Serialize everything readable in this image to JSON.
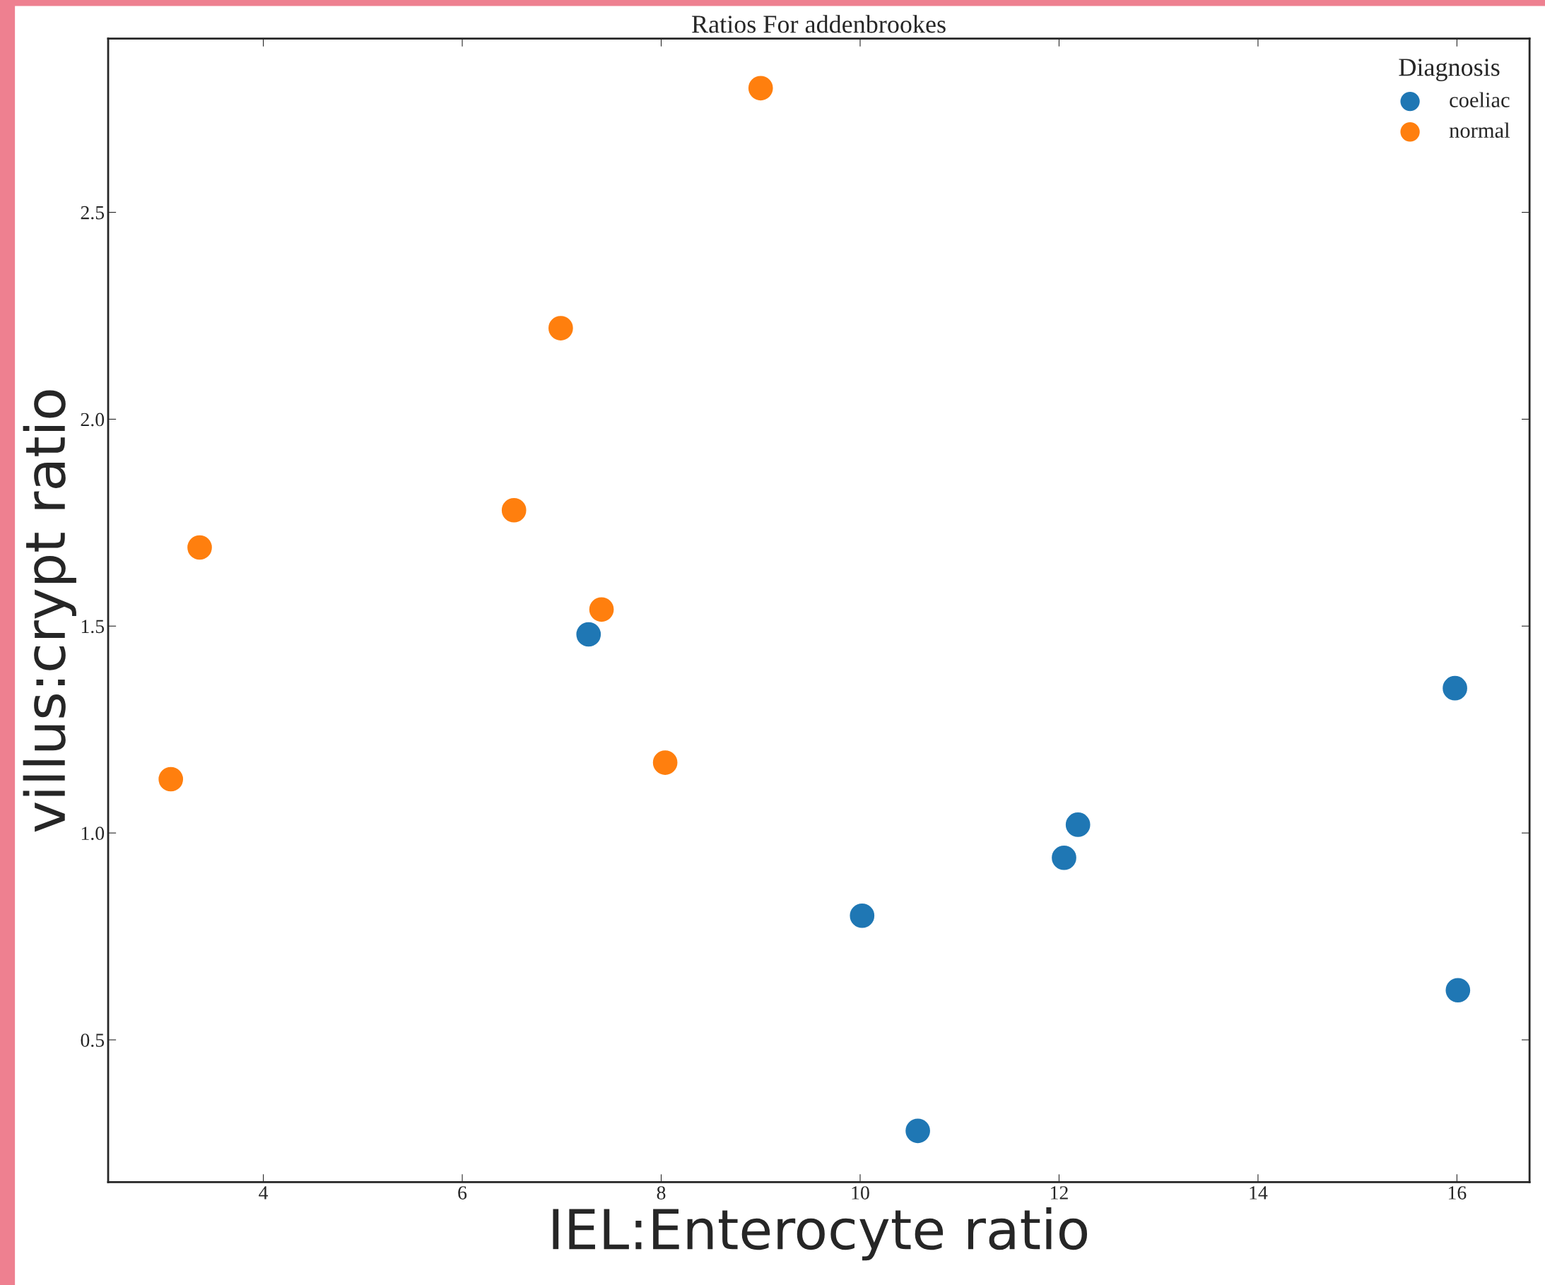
{
  "chart_data": {
    "type": "scatter",
    "title": "Ratios For addenbrookes",
    "xlabel": "IEL:Enterocyte ratio",
    "ylabel": "villus:crypt ratio",
    "legend_title": "Diagnosis",
    "legend": "top right",
    "marker": "circle",
    "grid": false,
    "xlim": [
      2.44,
      16.73
    ],
    "xticks": [
      4,
      6,
      8,
      10,
      12,
      14,
      16
    ],
    "ylim": [
      0.156,
      2.92
    ],
    "yticks": [
      0.5,
      {
        "value": 1,
        "label": "1.0"
      },
      1.5,
      {
        "value": 2,
        "label": "2.0"
      },
      2.5
    ],
    "series": [
      {
        "name": "coeliac",
        "color": "#1f77b4",
        "x": [
          7.27,
          15.98,
          12.19,
          12.05,
          10.02,
          16.01,
          10.58
        ],
        "values": [
          1.48,
          1.35,
          1.02,
          0.94,
          0.8,
          0.62,
          0.28
        ]
      },
      {
        "name": "normal",
        "color": "#ff7f0e",
        "x": [
          9.0,
          6.99,
          6.52,
          3.36,
          7.4,
          8.04,
          3.07
        ],
        "values": [
          2.8,
          2.22,
          1.78,
          1.69,
          1.54,
          1.17,
          1.13
        ]
      }
    ]
  }
}
